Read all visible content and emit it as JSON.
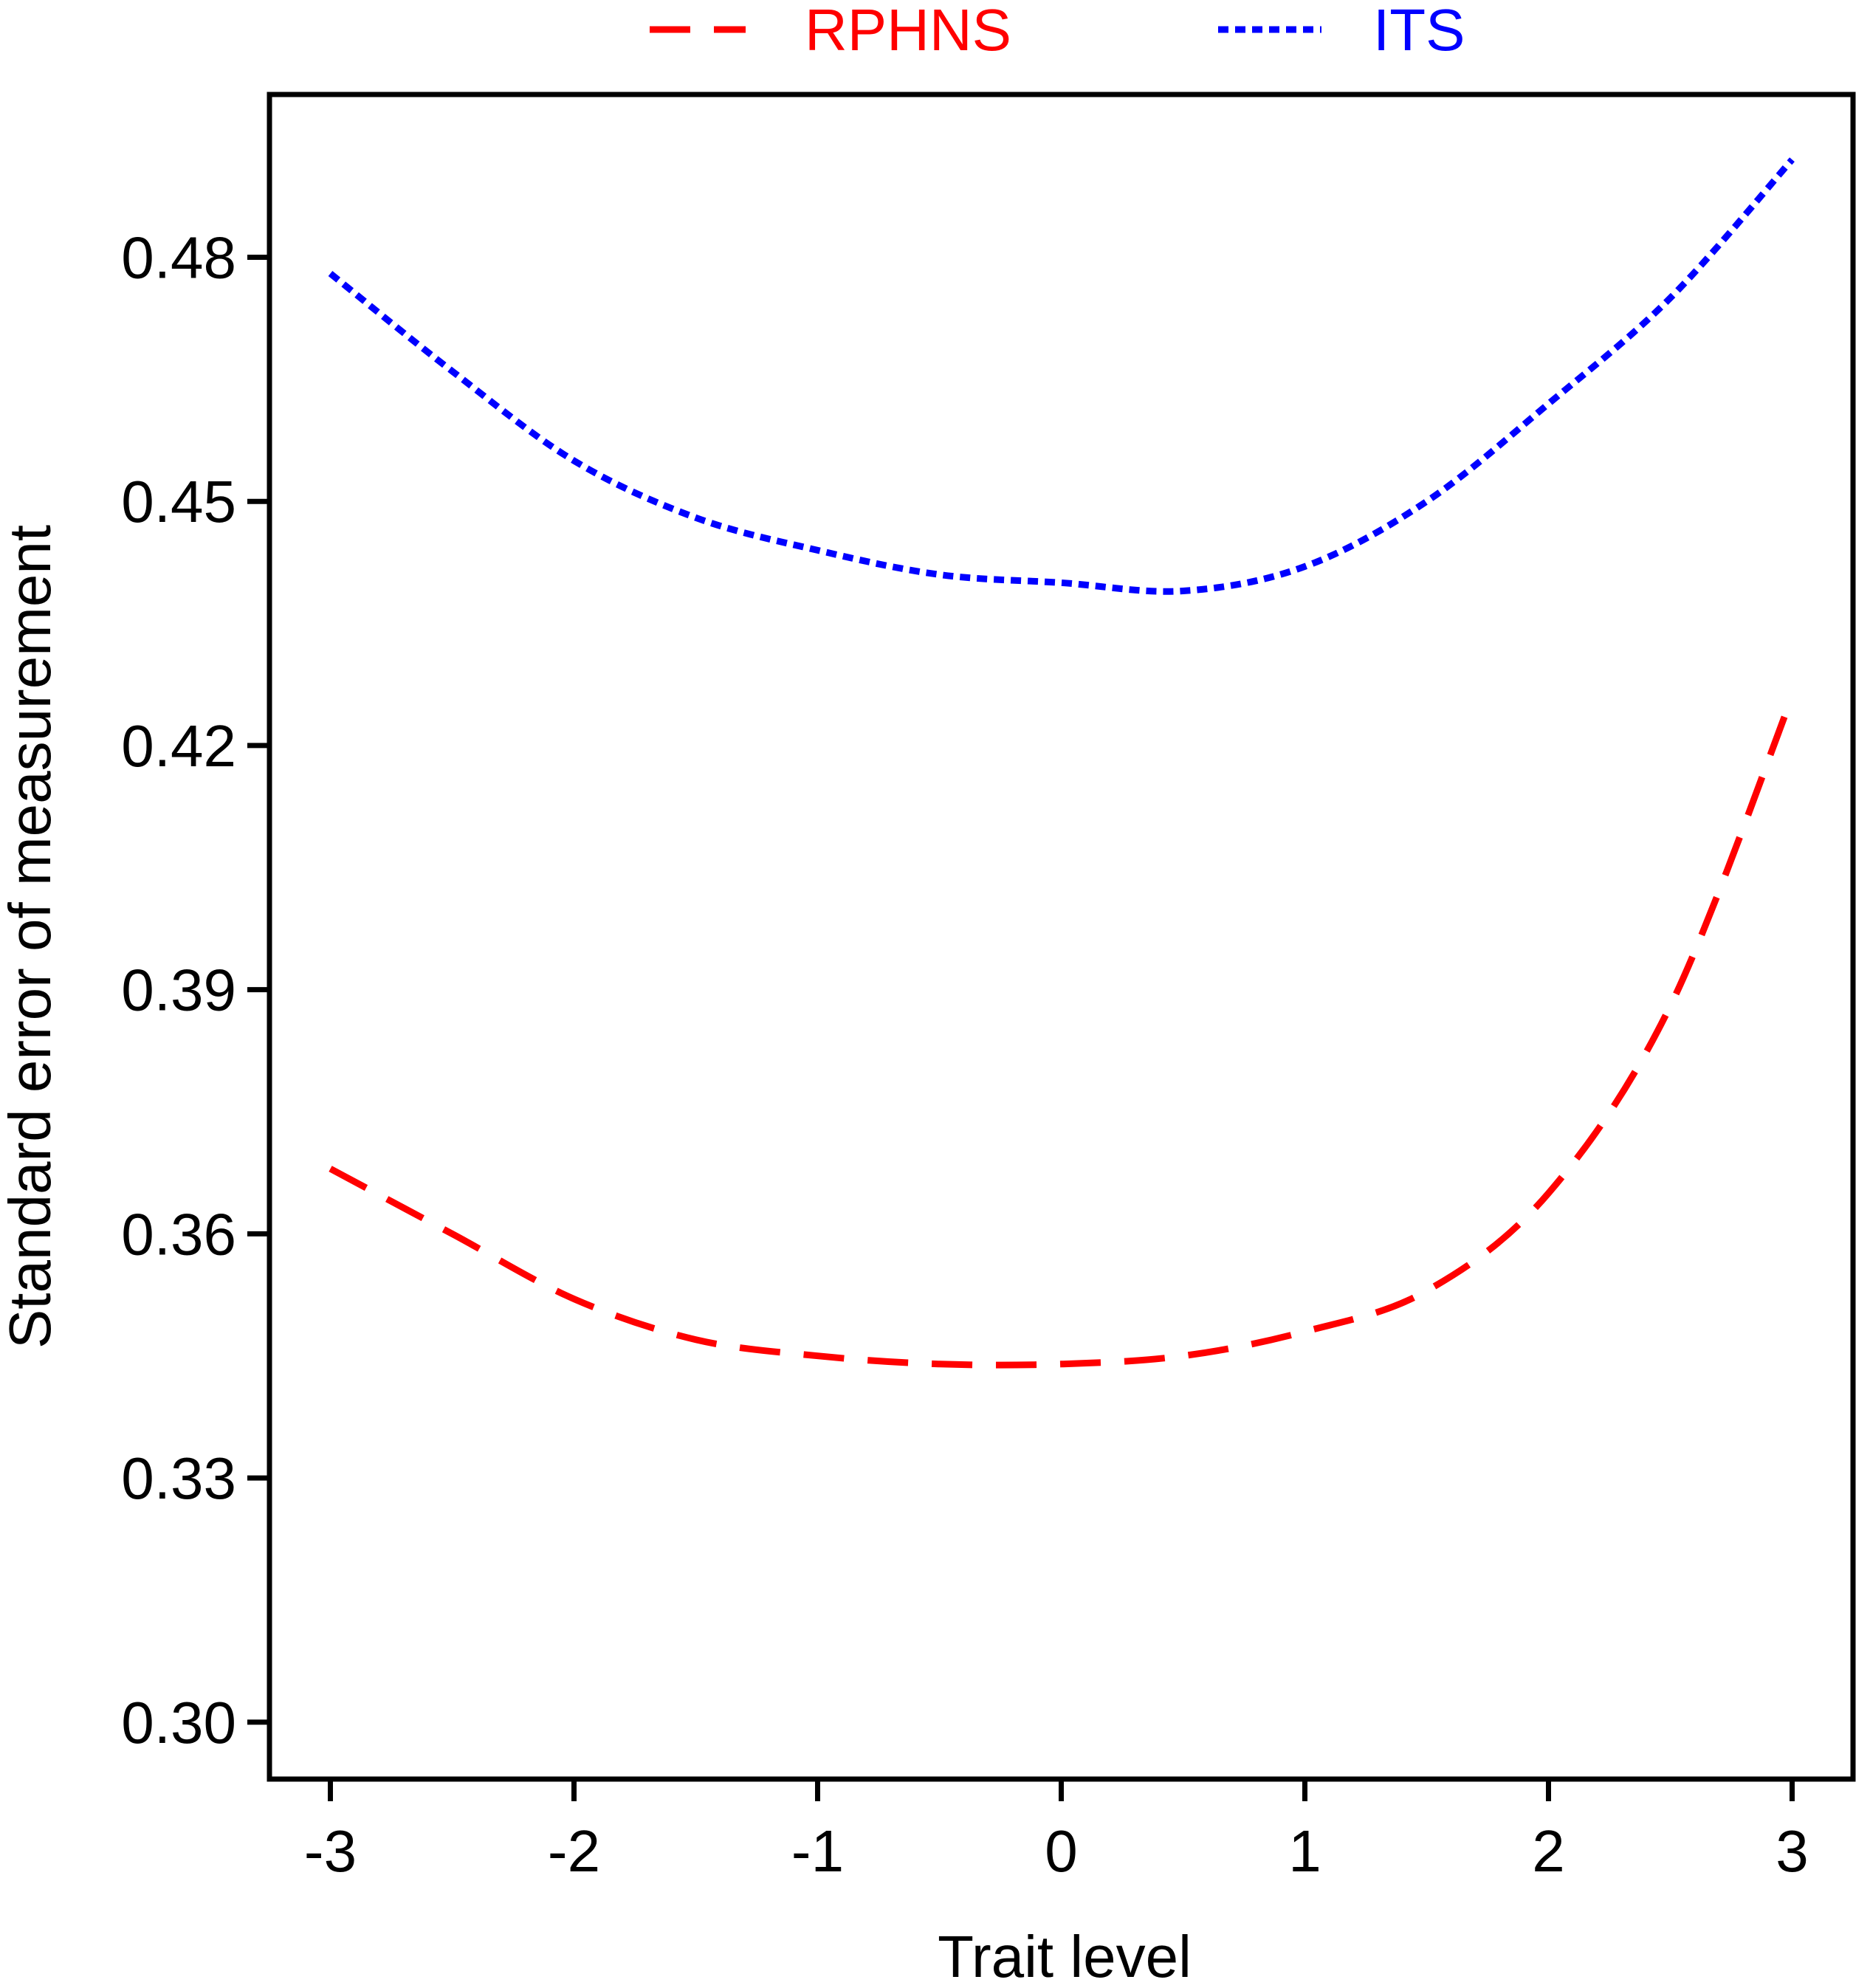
{
  "chart_data": {
    "type": "line",
    "xlabel": "Trait level",
    "ylabel": "Standard error of measurement",
    "xlim": [
      -3.25,
      3.25
    ],
    "ylim": [
      0.293,
      0.5
    ],
    "xticks": [
      -3,
      -2,
      -1,
      0,
      1,
      2,
      3
    ],
    "xtick_labels": [
      "-3",
      "-2",
      "-1",
      "0",
      "1",
      "2",
      "3"
    ],
    "yticks": [
      0.3,
      0.33,
      0.36,
      0.39,
      0.42,
      0.45,
      0.48
    ],
    "ytick_labels": [
      "0.30",
      "0.33",
      "0.36",
      "0.39",
      "0.42",
      "0.45",
      "0.48"
    ],
    "grid": false,
    "legend_position": "top-center",
    "series": [
      {
        "name": "RPHNS",
        "color": "#ff0000",
        "dash": "dashed",
        "x": [
          -3.0,
          -2.5,
          -2.0,
          -1.5,
          -1.0,
          -0.5,
          0.0,
          0.5,
          1.0,
          1.5,
          2.0,
          2.5,
          3.0
        ],
        "y": [
          0.368,
          0.36,
          0.352,
          0.347,
          0.345,
          0.344,
          0.344,
          0.345,
          0.348,
          0.353,
          0.365,
          0.388,
          0.426
        ]
      },
      {
        "name": "ITS",
        "color": "#0000ff",
        "dash": "dotted",
        "x": [
          -3.0,
          -2.5,
          -2.0,
          -1.5,
          -1.0,
          -0.5,
          0.0,
          0.5,
          1.0,
          1.5,
          2.0,
          2.5,
          3.0
        ],
        "y": [
          0.478,
          0.466,
          0.455,
          0.448,
          0.444,
          0.441,
          0.44,
          0.439,
          0.442,
          0.45,
          0.462,
          0.475,
          0.492
        ]
      }
    ]
  }
}
